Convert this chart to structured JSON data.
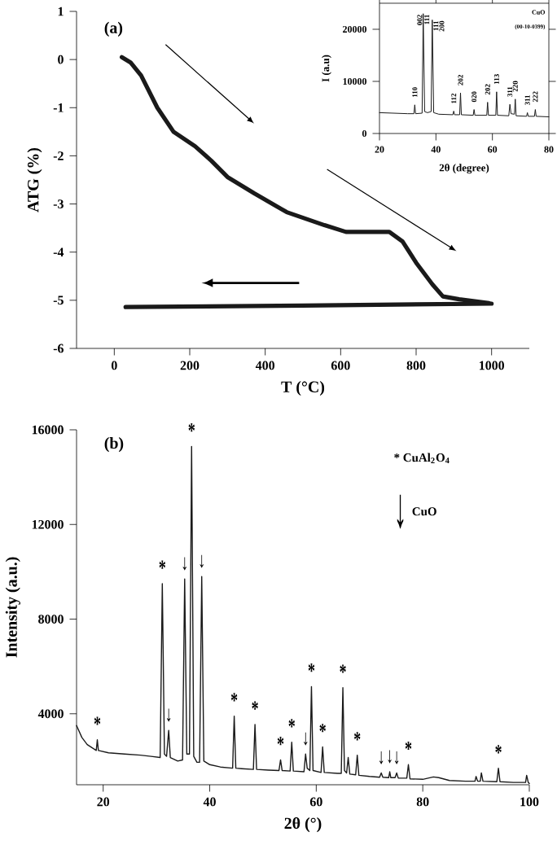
{
  "chart_data": [
    {
      "type": "line",
      "xlabel": "T (°C)",
      "ylabel": "ATG (%)",
      "xlim": [
        -100,
        1100
      ],
      "ylim": [
        -6,
        1
      ],
      "xticks": [
        0,
        200,
        400,
        600,
        800,
        1000
      ],
      "yticks": [
        -6,
        -5,
        -4,
        -3,
        -2,
        -1,
        0,
        1
      ],
      "series": [
        {
          "color": "#1a1a1a",
          "x": [
            20,
            43,
            71,
            114,
            157,
            214,
            257,
            300,
            371,
            457,
            557,
            614,
            729,
            764,
            800,
            843,
            871,
            914,
            993
          ],
          "values": [
            0.05,
            -0.06,
            -0.33,
            -1.0,
            -1.5,
            -1.8,
            -2.1,
            -2.44,
            -2.78,
            -3.17,
            -3.44,
            -3.58,
            -3.58,
            -3.78,
            -4.22,
            -4.67,
            -4.92,
            -4.98,
            -5.06
          ]
        },
        {
          "color": "#1a1a1a",
          "x": [
            1000,
            500,
            30
          ],
          "values": [
            -5.07,
            -5.11,
            -5.14
          ]
        }
      ],
      "annotations": [
        "(a)"
      ]
    },
    {
      "type": "line",
      "xlabel": "2θ (degree)",
      "ylabel": "I (a.u)",
      "xlim": [
        20,
        80
      ],
      "ylim": [
        0,
        25000
      ],
      "xticks": [
        20,
        40,
        60,
        80
      ],
      "yticks": [
        0,
        10000,
        20000
      ],
      "series": [
        {
          "color": "#1a1a1a",
          "x": [
            20,
            30,
            32.2,
            32.5,
            32.8,
            35.1,
            35.5,
            36.0,
            37.0,
            38.3,
            38.7,
            39.2,
            41,
            46.0,
            46.3,
            46.6,
            48.4,
            48.7,
            49.0,
            53.2,
            53.5,
            53.8,
            58.0,
            58.3,
            58.6,
            61.2,
            61.5,
            61.8,
            65.8,
            66.2,
            66.6,
            67.8,
            68.1,
            68.4,
            72.1,
            72.4,
            72.7,
            74.9,
            75.2,
            75.5,
            80
          ],
          "values": [
            4000,
            3800,
            3800,
            5500,
            3800,
            3900,
            23000,
            4200,
            4000,
            4200,
            21800,
            4000,
            3700,
            3600,
            4300,
            3600,
            3600,
            7800,
            3600,
            3500,
            4600,
            3500,
            3500,
            6000,
            3500,
            3500,
            8000,
            3500,
            3400,
            5600,
            3800,
            3700,
            6600,
            3400,
            3300,
            4000,
            3300,
            3300,
            4600,
            3300,
            3200
          ]
        }
      ],
      "annotations": [
        "CuO",
        "(00-10-0399)",
        {
          "text": "110",
          "x": 32.5,
          "y": 5500
        },
        {
          "text": "002",
          "x": 35.5,
          "y": 23000
        },
        {
          "text": "111",
          "x": 35.5,
          "y": 23000
        },
        {
          "text": "111",
          "x": 38.7,
          "y": 21800
        },
        {
          "text": "200",
          "x": 38.7,
          "y": 21800
        },
        {
          "text": "112",
          "x": 46.3,
          "y": 4300
        },
        {
          "text": "202",
          "x": 48.7,
          "y": 7800
        },
        {
          "text": "020",
          "x": 53.5,
          "y": 4600
        },
        {
          "text": "202",
          "x": 58.3,
          "y": 6000
        },
        {
          "text": "113",
          "x": 61.5,
          "y": 8000
        },
        {
          "text": "311",
          "x": 66.2,
          "y": 5600
        },
        {
          "text": "220",
          "x": 68.1,
          "y": 6600
        },
        {
          "text": "311",
          "x": 72.4,
          "y": 4000
        },
        {
          "text": "222",
          "x": 75.2,
          "y": 4600
        }
      ]
    },
    {
      "type": "line",
      "xlabel": "2θ (°)",
      "ylabel": "Intensity (a.u.)",
      "xlim": [
        15,
        100
      ],
      "ylim": [
        1000,
        16000
      ],
      "xticks": [
        20,
        40,
        60,
        80,
        100
      ],
      "yticks": [
        4000,
        8000,
        12000,
        16000
      ],
      "series": [
        {
          "color": "#1a1a1a",
          "x": [
            15,
            16,
            17,
            18,
            18.7,
            18.9,
            19.1,
            21,
            24,
            27,
            29,
            30.7,
            31.1,
            31.5,
            31.9,
            32.3,
            32.6,
            34,
            34.9,
            35.3,
            35.7,
            36.2,
            36.6,
            37.0,
            37.6,
            38.1,
            38.5,
            38.9,
            40,
            42,
            44.3,
            44.6,
            44.9,
            46,
            48.2,
            48.5,
            48.8,
            51,
            53.0,
            53.3,
            53.6,
            55.1,
            55.4,
            55.7,
            57.7,
            58.0,
            58.3,
            58.8,
            59.1,
            59.4,
            60.9,
            61.2,
            61.5,
            64,
            64.7,
            65.0,
            65.3,
            65.7,
            66.0,
            66.3,
            67.4,
            67.7,
            68.0,
            70,
            71.9,
            72.2,
            72.5,
            73.6,
            73.8,
            74.0,
            74.8,
            75.1,
            75.4,
            77.0,
            77.3,
            77.6,
            80,
            82,
            83,
            85,
            88,
            89.8,
            90.0,
            90.3,
            90.8,
            91.0,
            91.3,
            93.9,
            94.2,
            94.5,
            97,
            99.3,
            99.5,
            99.8,
            100
          ],
          "values": [
            3500,
            3000,
            2700,
            2550,
            2450,
            2900,
            2450,
            2350,
            2300,
            2250,
            2200,
            2150,
            9500,
            2300,
            2200,
            3300,
            2150,
            2000,
            2050,
            9700,
            2300,
            2300,
            15300,
            2200,
            1950,
            1950,
            9800,
            2000,
            1850,
            1750,
            1700,
            3900,
            1700,
            1680,
            1650,
            3550,
            1650,
            1620,
            1600,
            2050,
            1600,
            1580,
            2800,
            1580,
            1550,
            2300,
            1700,
            1600,
            5150,
            1600,
            1520,
            2600,
            1520,
            1480,
            1480,
            5100,
            1600,
            1500,
            2150,
            1450,
            1420,
            2250,
            1400,
            1350,
            1320,
            1500,
            1320,
            1300,
            1550,
            1300,
            1300,
            1500,
            1280,
            1280,
            1850,
            1250,
            1230,
            1330,
            1300,
            1180,
            1150,
            1150,
            1350,
            1150,
            1150,
            1500,
            1150,
            1130,
            1700,
            1130,
            1100,
            1100,
            1400,
            1100,
            1050
          ]
        }
      ],
      "annotations": [
        "(b)",
        "* CuAl$_{2}$O$_{4}$",
        "↓",
        "CuO",
        {
          "text": "*",
          "x": 18.9,
          "y": 2900
        },
        {
          "text": "*",
          "x": 31.1,
          "y": 9500
        },
        {
          "text": "*",
          "x": 36.6,
          "y": 15300
        },
        {
          "text": "*",
          "x": 44.6,
          "y": 3900
        },
        {
          "text": "*",
          "x": 48.5,
          "y": 3550
        },
        {
          "text": "*",
          "x": 53.3,
          "y": 2050
        },
        {
          "text": "*",
          "x": 55.4,
          "y": 2800
        },
        {
          "text": "*",
          "x": 59.1,
          "y": 5150
        },
        {
          "text": "*",
          "x": 61.2,
          "y": 2600
        },
        {
          "text": "*",
          "x": 65.0,
          "y": 5100
        },
        {
          "text": "*",
          "x": 67.7,
          "y": 2250
        },
        {
          "text": "*",
          "x": 77.3,
          "y": 1850
        },
        {
          "text": "*",
          "x": 94.2,
          "y": 1700
        },
        {
          "text": "↓",
          "x": 32.3,
          "y": 3300
        },
        {
          "text": "↓",
          "x": 35.3,
          "y": 9700
        },
        {
          "text": "↓",
          "x": 38.5,
          "y": 9800
        },
        {
          "text": "↓",
          "x": 58.0,
          "y": 2300
        },
        {
          "text": "↓",
          "x": 72.2,
          "y": 1500
        },
        {
          "text": "↓",
          "x": 73.8,
          "y": 1550
        },
        {
          "text": "↓",
          "x": 75.1,
          "y": 1500
        }
      ]
    }
  ]
}
